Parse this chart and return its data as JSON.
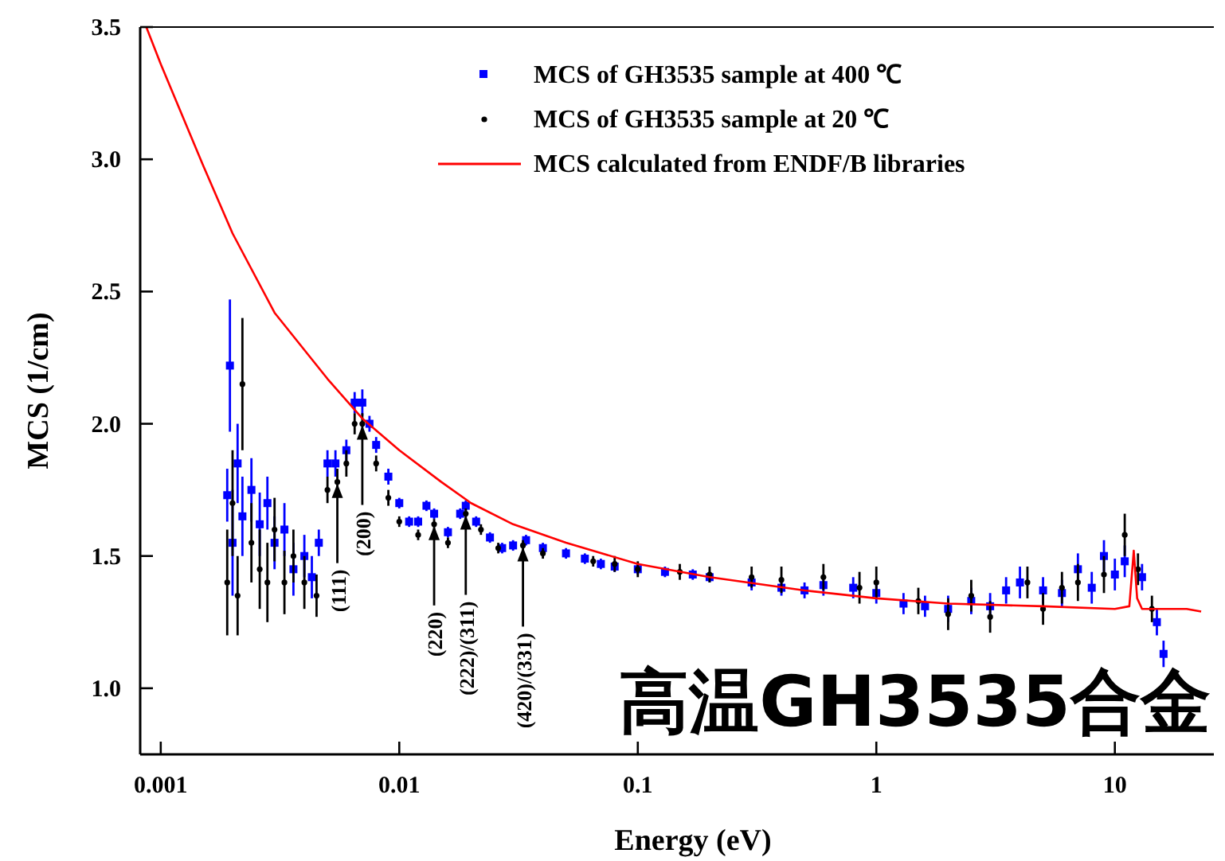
{
  "chart_data": {
    "type": "scatter",
    "xlabel": "Energy (eV)",
    "ylabel": "MCS (1/cm)",
    "log": "x",
    "xlim": [
      0.00082,
      26
    ],
    "ylim": [
      0.75,
      3.5
    ],
    "xticks": [
      0.001,
      0.01,
      0.1,
      1,
      10
    ],
    "yticks": [
      {
        "value": 1,
        "label": "1.0"
      },
      1.5,
      {
        "value": 2,
        "label": "2.0"
      },
      2.5,
      {
        "value": 3,
        "label": "3.0"
      },
      3.5
    ],
    "legend": "top right",
    "series": [
      {
        "name": "MCS of GH3535 sample at 400 ℃",
        "color": "#0000ff",
        "marker": "square",
        "x": [
          0.0019,
          0.00195,
          0.002,
          0.0021,
          0.0022,
          0.0024,
          0.0026,
          0.0028,
          0.003,
          0.0033,
          0.0036,
          0.004,
          0.0043,
          0.0046,
          0.005,
          0.0054,
          0.006,
          0.0065,
          0.007,
          0.0075,
          0.008,
          0.009,
          0.01,
          0.011,
          0.012,
          0.013,
          0.014,
          0.016,
          0.018,
          0.019,
          0.021,
          0.024,
          0.027,
          0.03,
          0.034,
          0.04,
          0.05,
          0.06,
          0.07,
          0.08,
          0.1,
          0.13,
          0.17,
          0.2,
          0.3,
          0.4,
          0.5,
          0.6,
          0.8,
          1,
          1.3,
          1.6,
          2,
          2.5,
          3,
          3.5,
          4,
          5,
          6,
          7,
          8,
          9,
          10,
          11,
          13,
          15,
          16
        ],
        "values": [
          1.73,
          2.22,
          1.55,
          1.85,
          1.65,
          1.75,
          1.62,
          1.7,
          1.55,
          1.6,
          1.45,
          1.5,
          1.42,
          1.55,
          1.85,
          1.85,
          1.9,
          2.08,
          2.08,
          2.0,
          1.92,
          1.8,
          1.7,
          1.63,
          1.63,
          1.69,
          1.66,
          1.59,
          1.66,
          1.69,
          1.63,
          1.57,
          1.53,
          1.54,
          1.56,
          1.53,
          1.51,
          1.49,
          1.47,
          1.46,
          1.45,
          1.44,
          1.43,
          1.42,
          1.4,
          1.38,
          1.37,
          1.39,
          1.38,
          1.36,
          1.32,
          1.31,
          1.3,
          1.33,
          1.31,
          1.37,
          1.4,
          1.37,
          1.36,
          1.45,
          1.38,
          1.5,
          1.43,
          1.48,
          1.42,
          1.25,
          1.13
        ],
        "errors": [
          0.1,
          0.25,
          0.2,
          0.15,
          0.15,
          0.12,
          0.12,
          0.1,
          0.1,
          0.1,
          0.1,
          0.08,
          0.08,
          0.05,
          0.05,
          0.05,
          0.04,
          0.04,
          0.05,
          0.03,
          0.03,
          0.03,
          0.02,
          0.02,
          0.02,
          0.02,
          0.02,
          0.02,
          0.02,
          0.02,
          0.02,
          0.02,
          0.02,
          0.02,
          0.02,
          0.02,
          0.02,
          0.02,
          0.02,
          0.02,
          0.02,
          0.02,
          0.02,
          0.02,
          0.03,
          0.03,
          0.03,
          0.04,
          0.04,
          0.04,
          0.04,
          0.04,
          0.05,
          0.05,
          0.05,
          0.05,
          0.06,
          0.05,
          0.05,
          0.06,
          0.06,
          0.06,
          0.06,
          0.06,
          0.05,
          0.05,
          0.05
        ]
      },
      {
        "name": "MCS of GH3535 sample at 20 ℃",
        "color": "#000000",
        "marker": "circle",
        "x": [
          0.0019,
          0.002,
          0.0021,
          0.0022,
          0.0024,
          0.0026,
          0.0028,
          0.003,
          0.0033,
          0.0036,
          0.004,
          0.0045,
          0.005,
          0.0055,
          0.006,
          0.0065,
          0.007,
          0.008,
          0.009,
          0.01,
          0.012,
          0.014,
          0.016,
          0.019,
          0.022,
          0.026,
          0.033,
          0.04,
          0.065,
          0.08,
          0.1,
          0.15,
          0.2,
          0.3,
          0.4,
          0.6,
          0.85,
          1,
          1.5,
          2,
          2.5,
          3,
          4.3,
          5,
          6,
          7,
          9,
          11,
          12.5,
          14.3
        ],
        "values": [
          1.4,
          1.7,
          1.35,
          2.15,
          1.55,
          1.45,
          1.4,
          1.6,
          1.4,
          1.5,
          1.4,
          1.35,
          1.75,
          1.78,
          1.85,
          2.0,
          2.0,
          1.85,
          1.72,
          1.63,
          1.58,
          1.62,
          1.55,
          1.66,
          1.6,
          1.53,
          1.54,
          1.51,
          1.48,
          1.47,
          1.45,
          1.44,
          1.43,
          1.42,
          1.41,
          1.42,
          1.38,
          1.4,
          1.33,
          1.28,
          1.35,
          1.27,
          1.4,
          1.3,
          1.38,
          1.4,
          1.43,
          1.58,
          1.45,
          1.3
        ],
        "errors": [
          0.2,
          0.2,
          0.15,
          0.25,
          0.15,
          0.15,
          0.15,
          0.12,
          0.12,
          0.1,
          0.1,
          0.08,
          0.05,
          0.05,
          0.05,
          0.04,
          0.04,
          0.03,
          0.03,
          0.02,
          0.02,
          0.02,
          0.02,
          0.02,
          0.02,
          0.02,
          0.02,
          0.02,
          0.02,
          0.03,
          0.03,
          0.03,
          0.03,
          0.04,
          0.05,
          0.05,
          0.06,
          0.06,
          0.05,
          0.06,
          0.06,
          0.06,
          0.06,
          0.06,
          0.06,
          0.07,
          0.07,
          0.08,
          0.06,
          0.05
        ]
      },
      {
        "name": "MCS calculated from ENDF/B libraries",
        "color": "#ff0000",
        "type": "line",
        "x": [
          0.00087,
          0.001,
          0.0015,
          0.002,
          0.003,
          0.005,
          0.007,
          0.01,
          0.015,
          0.02,
          0.03,
          0.05,
          0.1,
          0.2,
          0.5,
          1,
          2,
          5,
          10,
          11.5,
          12,
          12.4,
          13,
          20,
          23
        ],
        "values": [
          3.5,
          3.36,
          2.98,
          2.72,
          2.42,
          2.17,
          2.02,
          1.9,
          1.78,
          1.7,
          1.62,
          1.55,
          1.47,
          1.42,
          1.37,
          1.34,
          1.32,
          1.31,
          1.3,
          1.31,
          1.52,
          1.34,
          1.3,
          1.3,
          1.29
        ]
      }
    ],
    "annotations": [
      {
        "text": "(111)",
        "x": 0.0055,
        "y": 1.78
      },
      {
        "text": "(200)",
        "x": 0.007,
        "y": 2.0
      },
      {
        "text": "(220)",
        "x": 0.014,
        "y": 1.62
      },
      {
        "text": "(222)/(311)",
        "x": 0.019,
        "y": 1.66
      },
      {
        "text": "(420)/(331)",
        "x": 0.033,
        "y": 1.54
      },
      "高温GH3535合金"
    ]
  }
}
